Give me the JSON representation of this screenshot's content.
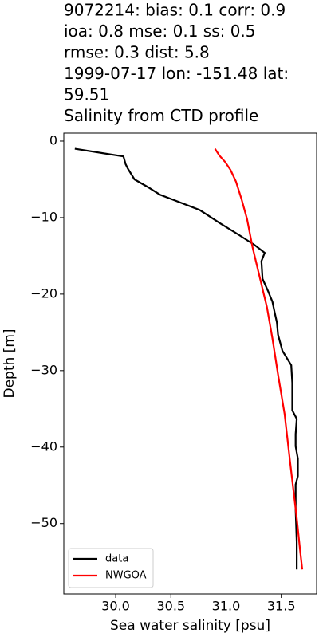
{
  "chart_data": {
    "type": "line",
    "title": [
      "9072214: bias: 0.1  corr: 0.9",
      " ioa: 0.8  mse: 0.1  ss: 0.5",
      "rmse: 0.3  dist: 5.8",
      "1999-07-17 lon: -151.48 lat:",
      "59.51",
      "Salinity from CTD profile"
    ],
    "xlabel": "Sea water salinity [psu]",
    "ylabel": "Depth [m]",
    "xlim": [
      29.53,
      31.82
    ],
    "ylim": [
      -59.2,
      1.04
    ],
    "xticks": [
      {
        "value": 30.0,
        "label": "30.0"
      },
      30.5,
      {
        "value": 31.0,
        "label": "31.0"
      },
      31.5
    ],
    "yticks": [
      0,
      {
        "value": -10,
        "label": "−10"
      },
      {
        "value": -20,
        "label": "−20"
      },
      {
        "value": -30,
        "label": "−30"
      },
      {
        "value": -40,
        "label": "−40"
      },
      {
        "value": -50,
        "label": "−50"
      }
    ],
    "legend": "lower left",
    "series": [
      {
        "name": "data",
        "color": "#000000",
        "x": [
          29.63,
          30.07,
          30.09,
          30.11,
          30.17,
          30.29,
          30.4,
          30.76,
          30.94,
          31.12,
          31.26,
          31.35,
          31.32,
          31.33,
          31.38,
          31.42,
          31.44,
          31.46,
          31.47,
          31.51,
          31.59,
          31.6,
          31.6,
          31.6,
          31.64,
          31.63,
          31.63,
          31.65,
          31.65,
          31.63,
          31.63,
          31.64,
          31.64
        ],
        "y": [
          -1,
          -2,
          -3,
          -3.6,
          -5,
          -6,
          -7,
          -9,
          -10.7,
          -12.3,
          -13.6,
          -14.6,
          -15.7,
          -18,
          -19.6,
          -21,
          -22.4,
          -23.7,
          -25.3,
          -27.4,
          -29.3,
          -31.6,
          -33.6,
          -35.2,
          -36.3,
          -38.3,
          -39.9,
          -41.5,
          -43.8,
          -44.9,
          -48.2,
          -52.4,
          -56
        ]
      },
      {
        "name": "NWGOA",
        "color": "#ff0000",
        "x": [
          30.9,
          30.94,
          30.99,
          31.04,
          31.09,
          31.14,
          31.19,
          31.24,
          31.3,
          31.37,
          31.42,
          31.47,
          31.53,
          31.58,
          31.64,
          31.67,
          31.69
        ],
        "y": [
          -1,
          -1.9,
          -2.7,
          -3.75,
          -5.3,
          -7.6,
          -10.2,
          -13.9,
          -17.5,
          -21.7,
          -25.8,
          -30.5,
          -35.7,
          -42,
          -49.3,
          -53.4,
          -56
        ]
      }
    ]
  }
}
